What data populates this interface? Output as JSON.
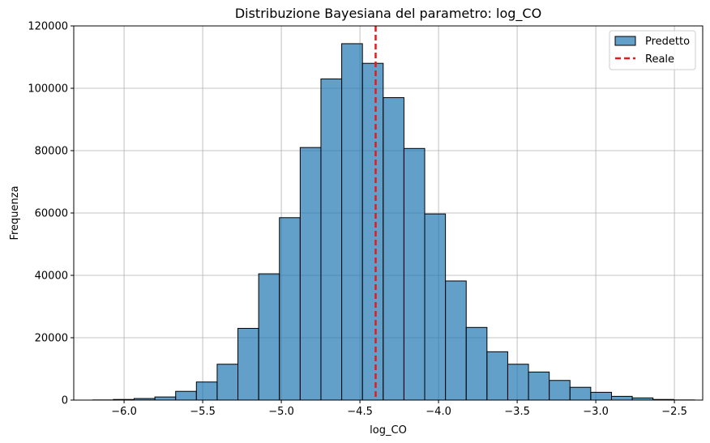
{
  "chart_data": {
    "type": "bar",
    "title": "Distribuzione Bayesiana del parametro: log_CO",
    "xlabel": "log_CO",
    "ylabel": "Frequenza",
    "xlim": [
      -6.32,
      -2.32
    ],
    "ylim": [
      0,
      120000
    ],
    "xticks": [
      -6.0,
      -5.5,
      -5.0,
      -4.5,
      -4.0,
      -3.5,
      -3.0,
      -2.5
    ],
    "xtick_labels": [
      "−6.0",
      "−5.5",
      "−5.0",
      "−4.5",
      "−4.0",
      "−3.5",
      "−3.0",
      "−2.5"
    ],
    "yticks": [
      0,
      20000,
      40000,
      60000,
      80000,
      100000,
      120000
    ],
    "ytick_labels": [
      "0",
      "20000",
      "40000",
      "60000",
      "80000",
      "100000",
      "120000"
    ],
    "grid": true,
    "legend_position": "top-right",
    "series": [
      {
        "name": "Predetto",
        "kind": "histogram",
        "bin_edges": [
          -6.2,
          -6.068,
          -5.936,
          -5.804,
          -5.672,
          -5.54,
          -5.408,
          -5.276,
          -5.144,
          -5.012,
          -4.88,
          -4.748,
          -4.616,
          -4.484,
          -4.352,
          -4.22,
          -4.088,
          -3.956,
          -3.824,
          -3.692,
          -3.56,
          -3.428,
          -3.296,
          -3.164,
          -3.032,
          -2.9,
          -2.768,
          -2.636,
          -2.504,
          -2.372
        ],
        "counts": [
          50,
          200,
          500,
          1000,
          2800,
          5800,
          11500,
          23000,
          40500,
          58500,
          81000,
          103000,
          114300,
          108000,
          97000,
          80700,
          59700,
          38200,
          23300,
          15500,
          11500,
          9000,
          6300,
          4100,
          2500,
          1200,
          700,
          200,
          50
        ],
        "color": "#1f77b4",
        "alpha": 0.7,
        "edgecolor": "#000000"
      },
      {
        "name": "Reale",
        "kind": "vline",
        "x": -4.4,
        "color": "#e41a1c",
        "style": "dashed"
      }
    ]
  },
  "legend": {
    "items": [
      {
        "label": "Predetto"
      },
      {
        "label": "Reale"
      }
    ]
  }
}
